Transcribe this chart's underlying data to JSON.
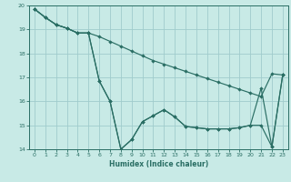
{
  "xlabel": "Humidex (Indice chaleur)",
  "background_color": "#c8eae6",
  "grid_color": "#a0cccc",
  "line_color": "#2a6e64",
  "xlim": [
    -0.5,
    23.5
  ],
  "ylim": [
    14,
    20
  ],
  "yticks": [
    14,
    15,
    16,
    17,
    18,
    19,
    20
  ],
  "xticks": [
    0,
    1,
    2,
    3,
    4,
    5,
    6,
    7,
    8,
    9,
    10,
    11,
    12,
    13,
    14,
    15,
    16,
    17,
    18,
    19,
    20,
    21,
    22,
    23
  ],
  "line1_x": [
    0,
    1,
    2,
    3,
    4,
    5,
    6,
    7,
    8,
    9,
    10,
    11,
    12,
    13,
    14,
    15,
    16,
    17,
    18,
    19,
    20,
    21,
    22,
    23
  ],
  "line1_y": [
    19.85,
    19.5,
    19.2,
    19.05,
    18.85,
    18.85,
    18.7,
    18.5,
    18.3,
    18.1,
    17.9,
    17.7,
    17.55,
    17.4,
    17.25,
    17.1,
    16.95,
    16.8,
    16.65,
    16.5,
    16.35,
    16.2,
    17.15,
    17.1
  ],
  "line2_x": [
    0,
    1,
    2,
    3,
    4,
    5,
    6,
    7,
    8,
    9,
    10,
    11,
    12,
    13,
    14,
    15,
    16,
    17,
    18,
    19,
    20,
    21,
    22,
    23
  ],
  "line2_y": [
    19.85,
    19.5,
    19.2,
    19.05,
    18.85,
    18.85,
    16.85,
    16.0,
    14.0,
    14.4,
    15.15,
    15.4,
    15.65,
    15.35,
    14.95,
    14.9,
    14.85,
    14.85,
    14.85,
    14.9,
    15.0,
    16.55,
    14.1,
    17.1
  ],
  "line3_x": [
    0,
    1,
    2,
    3,
    4,
    5,
    6,
    7,
    8,
    9,
    10,
    11,
    12,
    13,
    14,
    15,
    16,
    17,
    18,
    19,
    20,
    21,
    22,
    23
  ],
  "line3_y": [
    19.85,
    19.5,
    19.2,
    19.05,
    18.85,
    18.85,
    16.85,
    16.0,
    14.0,
    14.4,
    15.15,
    15.4,
    15.65,
    15.35,
    14.95,
    14.9,
    14.85,
    14.85,
    14.85,
    14.9,
    15.0,
    15.0,
    14.1,
    17.1
  ]
}
